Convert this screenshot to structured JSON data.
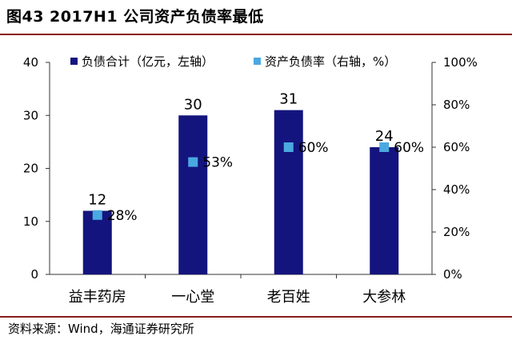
{
  "title": "图43 2017H1 公司资产负债率最低",
  "source": "资料来源：Wind，海通证券研究所",
  "colors": {
    "bar": "#14147e",
    "point": "#4aa8e0",
    "rule": "#8a1b1b",
    "axis": "#333333"
  },
  "chart_data": {
    "type": "bar",
    "title": "图43 2017H1 公司资产负债率最低",
    "categories": [
      "益丰药房",
      "一心堂",
      "老百姓",
      "大参林"
    ],
    "series": [
      {
        "name": "负债合计（亿元，左轴）",
        "type": "bar",
        "axis": "left",
        "values": [
          12,
          30,
          31,
          24
        ],
        "labels": [
          "12",
          "30",
          "31",
          "24"
        ]
      },
      {
        "name": "资产负债率（右轴，%）",
        "type": "scatter",
        "axis": "right",
        "values": [
          28,
          53,
          60,
          60
        ],
        "labels": [
          "28%",
          "53%",
          "60%",
          "60%"
        ]
      }
    ],
    "y_left": {
      "min": 0,
      "max": 40,
      "ticks": [
        "0",
        "10",
        "20",
        "30",
        "40"
      ]
    },
    "y_right": {
      "min": 0,
      "max": 100,
      "ticks": [
        "0%",
        "20%",
        "40%",
        "60%",
        "80%",
        "100%"
      ]
    },
    "legend_position": "top",
    "grid": false
  }
}
